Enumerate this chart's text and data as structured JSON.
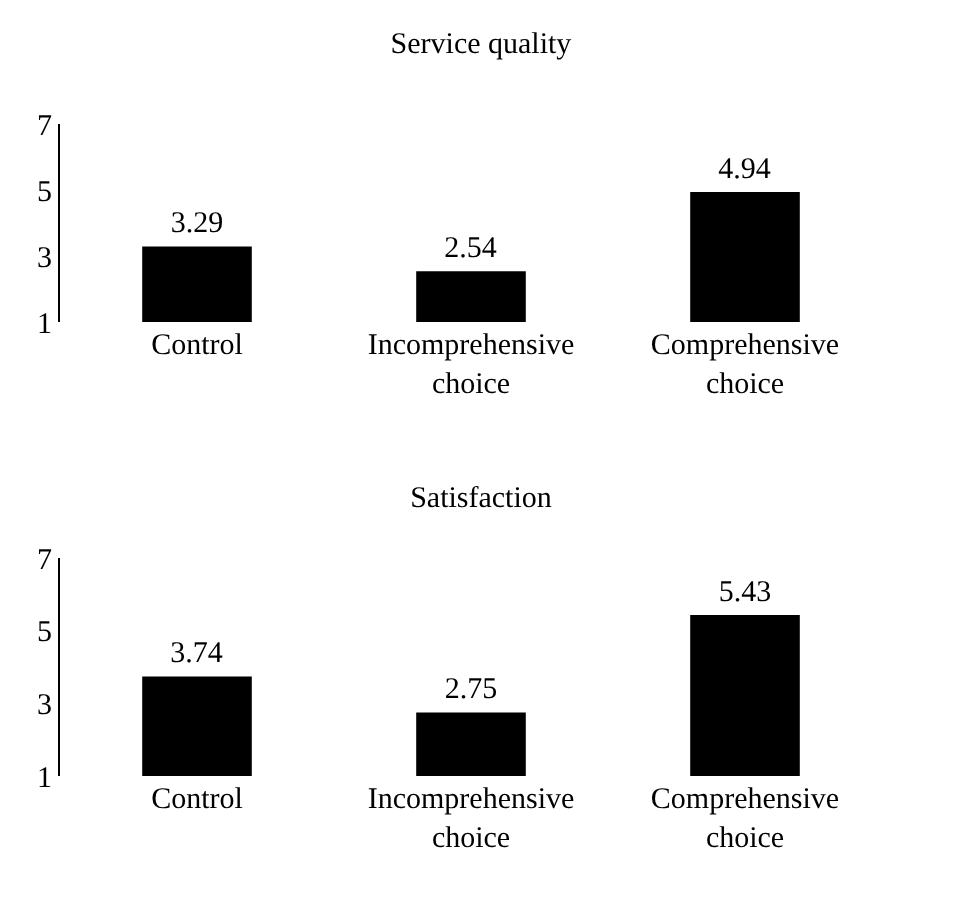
{
  "chart_data": [
    {
      "type": "bar",
      "title": "Service quality",
      "categories": [
        "Control",
        "Incomprehensive choice",
        "Comprehensive choice"
      ],
      "values": [
        3.29,
        2.54,
        4.94
      ],
      "color": "#000000",
      "ylim": [
        1,
        7
      ],
      "yticks": [
        1,
        3,
        5,
        7
      ],
      "grid": false,
      "data_labels": true
    },
    {
      "type": "bar",
      "title": "Satisfaction",
      "categories": [
        "Control",
        "Incomprehensive choice",
        "Comprehensive choice"
      ],
      "values": [
        3.74,
        2.75,
        5.43
      ],
      "color": "#000000",
      "ylim": [
        1,
        7
      ],
      "yticks": [
        1,
        3,
        5,
        7
      ],
      "grid": false,
      "data_labels": true
    }
  ]
}
